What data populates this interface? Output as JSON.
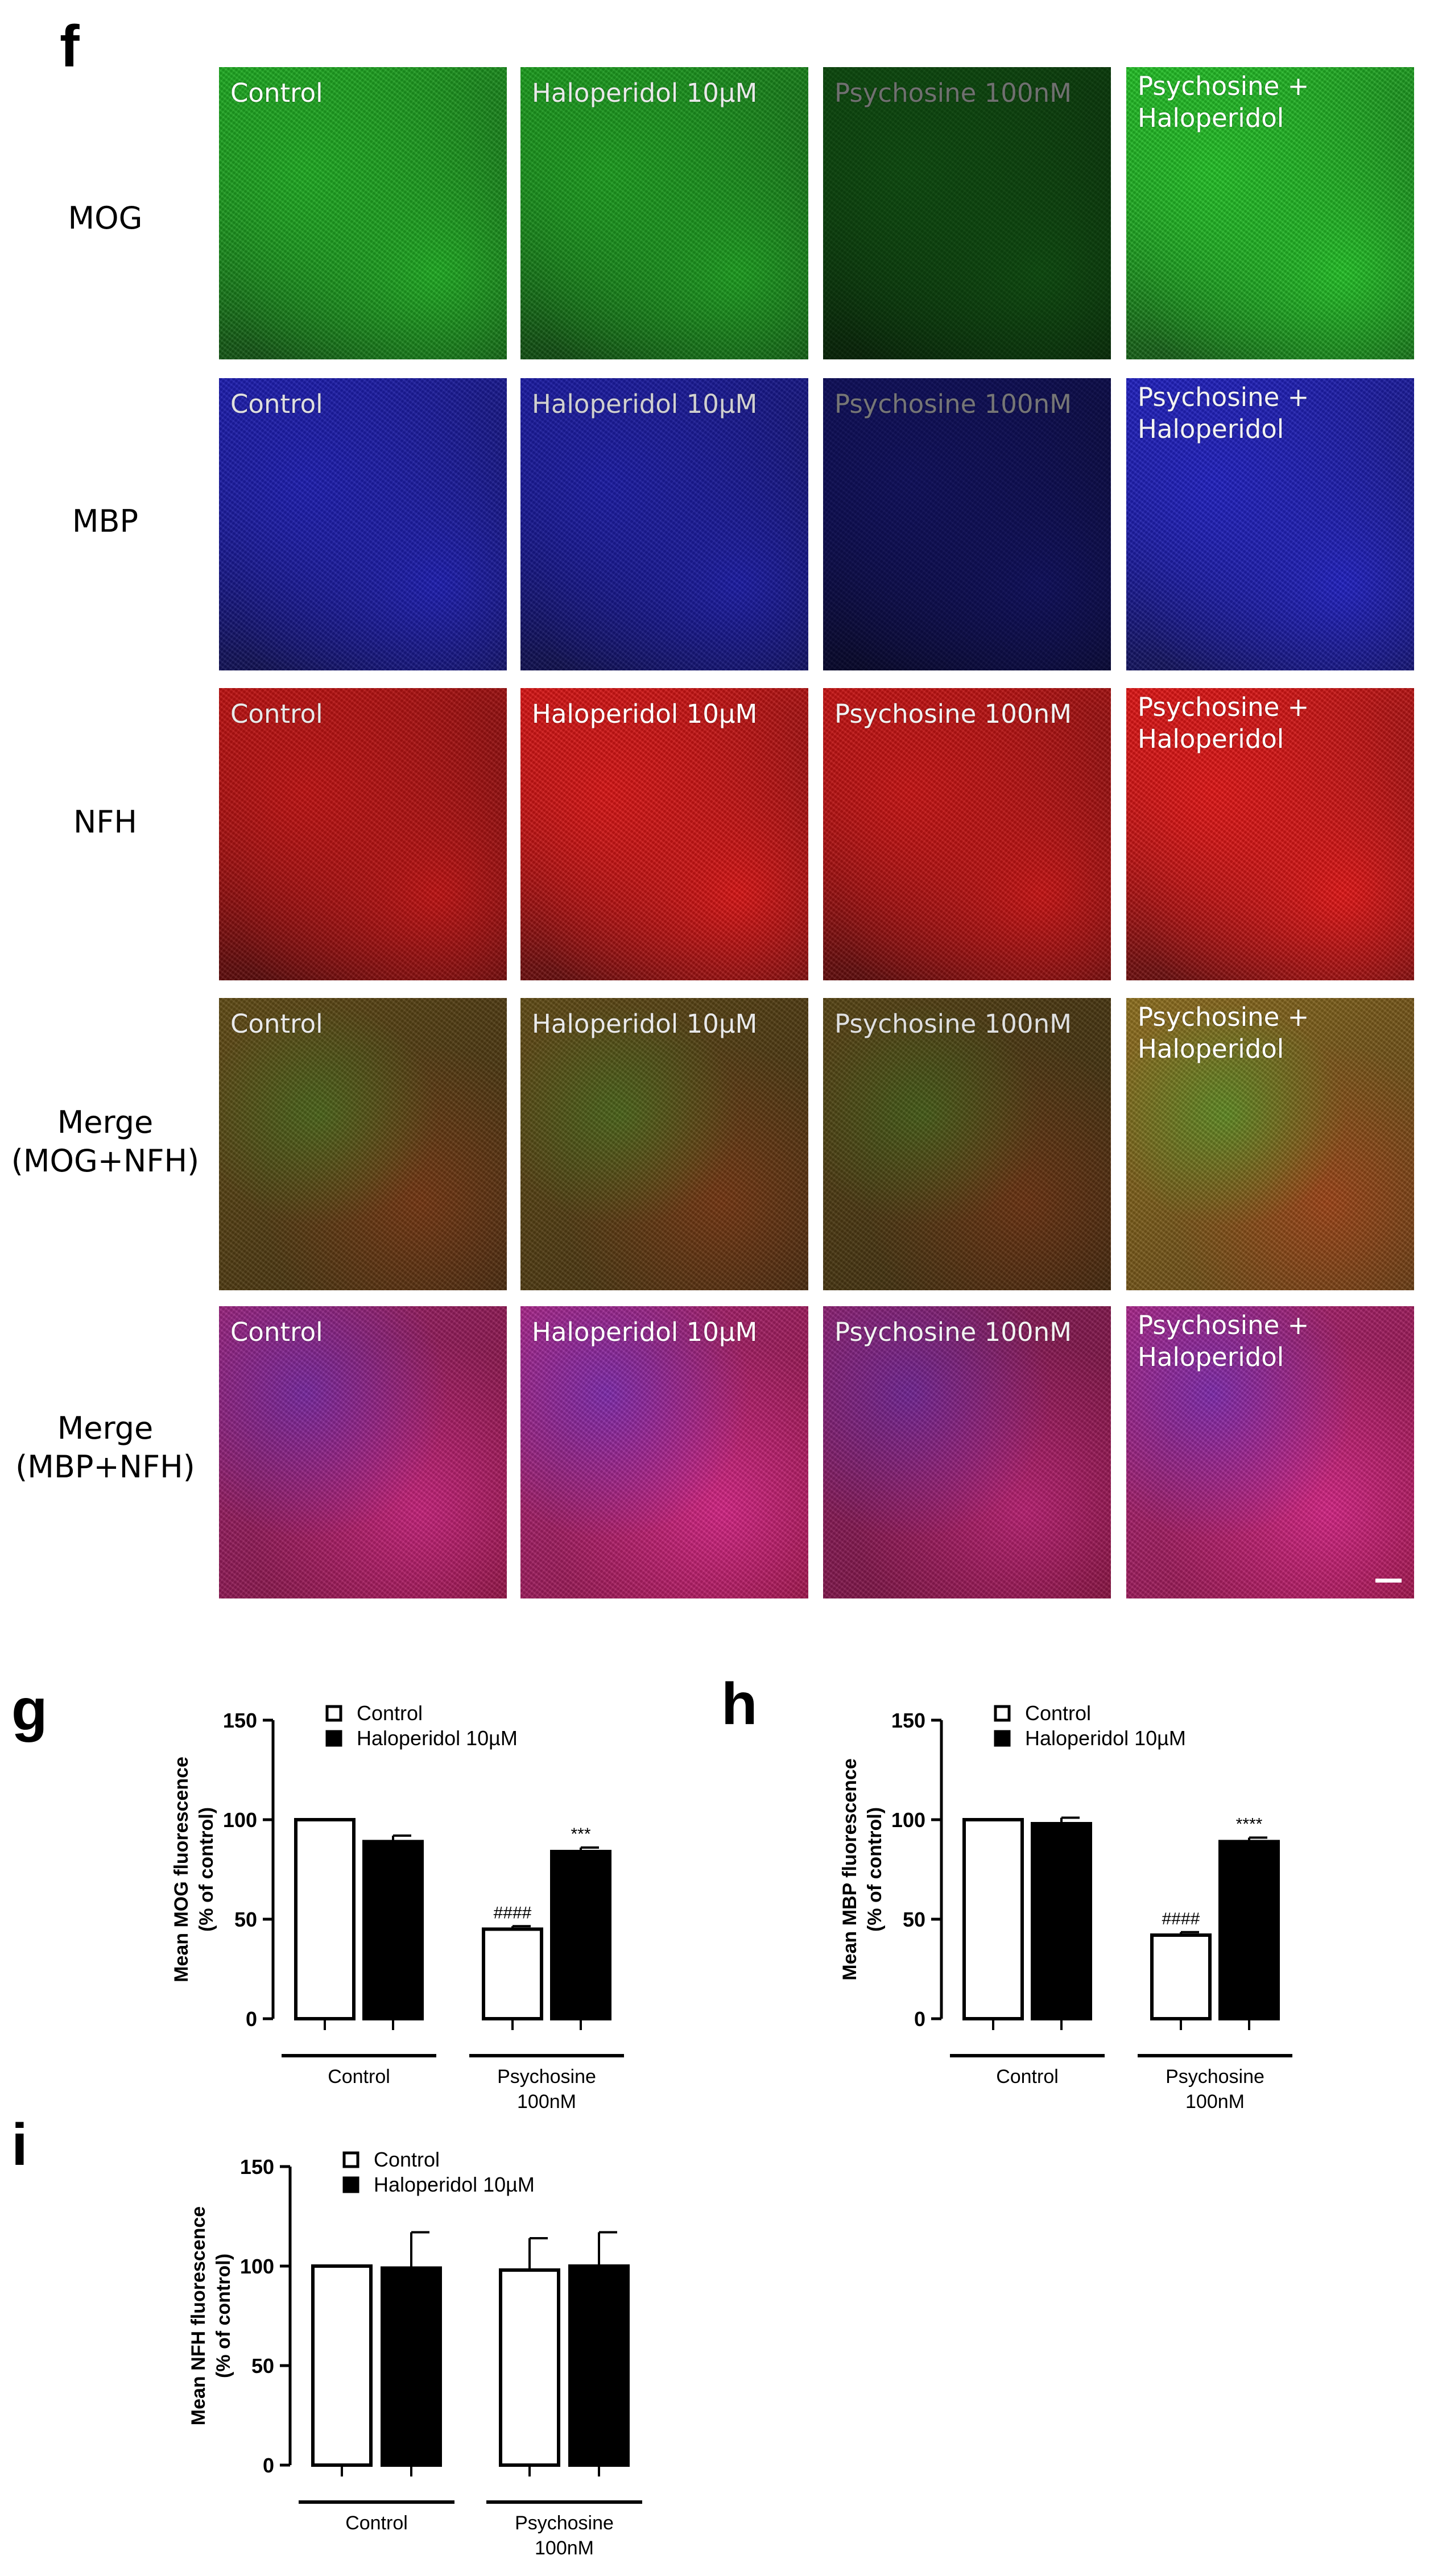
{
  "panels": {
    "f": "f",
    "g": "g",
    "h": "h",
    "i": "i"
  },
  "micrograph": {
    "rows": [
      {
        "label": "MOG",
        "stain": "green"
      },
      {
        "label": "MBP",
        "stain": "blue"
      },
      {
        "label": "NFH",
        "stain": "red"
      },
      {
        "label_line1": "Merge",
        "label_line2": "(MOG+NFH)",
        "stain": "mog-nfh-merge"
      },
      {
        "label_line1": "Merge",
        "label_line2": "(MBP+NFH)",
        "stain": "mbp-nfh-merge"
      }
    ],
    "columns": [
      {
        "caption": "Control"
      },
      {
        "caption": "Haloperidol 10µM"
      },
      {
        "caption": "Psychosine 100nM"
      },
      {
        "caption_line1": "Psychosine +",
        "caption_line2": "Haloperidol"
      }
    ],
    "intensity": [
      [
        0.85,
        0.75,
        0.12,
        1.0
      ],
      [
        0.7,
        0.62,
        0.15,
        0.8
      ],
      [
        0.75,
        0.9,
        0.8,
        0.95
      ],
      [
        0.75,
        0.75,
        0.7,
        0.95
      ],
      [
        0.85,
        0.9,
        0.8,
        0.9
      ]
    ],
    "colors": {
      "green": "#1fae22",
      "blue": "#2222cc",
      "red": "#d41414",
      "mog-nfh-merge": "#8a7a1a",
      "mbp-nfh-merge": "#c02a9a"
    }
  },
  "chart_data": [
    {
      "id": "g",
      "type": "bar",
      "ylabel_line1": "Mean MOG fluorescence",
      "ylabel_line2": "(% of control)",
      "ylim": [
        0,
        150
      ],
      "yticks": [
        0,
        50,
        100,
        150
      ],
      "groups": [
        "Control",
        "Psychosine 100nM"
      ],
      "group_line1": [
        "Control",
        "Psychosine"
      ],
      "group_line2": [
        "",
        "100nM"
      ],
      "series": [
        {
          "name": "Control",
          "fill": "#ffffff",
          "values": [
            100,
            45
          ],
          "errors": [
            0,
            1.5
          ],
          "annotations": [
            "",
            "####"
          ]
        },
        {
          "name": "Haloperidol 10µM",
          "fill": "#000000",
          "values": [
            89,
            84
          ],
          "errors": [
            3,
            2
          ],
          "annotations": [
            "",
            "***"
          ]
        }
      ],
      "legend": "top-left"
    },
    {
      "id": "h",
      "type": "bar",
      "ylabel_line1": "Mean MBP fluorescence",
      "ylabel_line2": "(% of control)",
      "ylim": [
        0,
        150
      ],
      "yticks": [
        0,
        50,
        100,
        150
      ],
      "groups": [
        "Control",
        "Psychosine 100nM"
      ],
      "group_line1": [
        "Control",
        "Psychosine"
      ],
      "group_line2": [
        "",
        "100nM"
      ],
      "series": [
        {
          "name": "Control",
          "fill": "#ffffff",
          "values": [
            100,
            42
          ],
          "errors": [
            0,
            1.5
          ],
          "annotations": [
            "",
            "####"
          ]
        },
        {
          "name": "Haloperidol 10µM",
          "fill": "#000000",
          "values": [
            98,
            89
          ],
          "errors": [
            3,
            2
          ],
          "annotations": [
            "",
            "****"
          ]
        }
      ],
      "legend": "top-left"
    },
    {
      "id": "i",
      "type": "bar",
      "ylabel_line1": "Mean NFH fluorescence",
      "ylabel_line2": "(% of control)",
      "ylim": [
        0,
        150
      ],
      "yticks": [
        0,
        50,
        100,
        150
      ],
      "groups": [
        "Control",
        "Psychosine 100nM"
      ],
      "group_line1": [
        "Control",
        "Psychosine"
      ],
      "group_line2": [
        "",
        "100nM"
      ],
      "series": [
        {
          "name": "Control",
          "fill": "#ffffff",
          "values": [
            100,
            98
          ],
          "errors": [
            0,
            16
          ],
          "annotations": [
            "",
            ""
          ]
        },
        {
          "name": "Haloperidol 10µM",
          "fill": "#000000",
          "values": [
            99,
            100
          ],
          "errors": [
            18,
            17
          ],
          "annotations": [
            "",
            ""
          ]
        }
      ],
      "legend": "top-left"
    }
  ]
}
